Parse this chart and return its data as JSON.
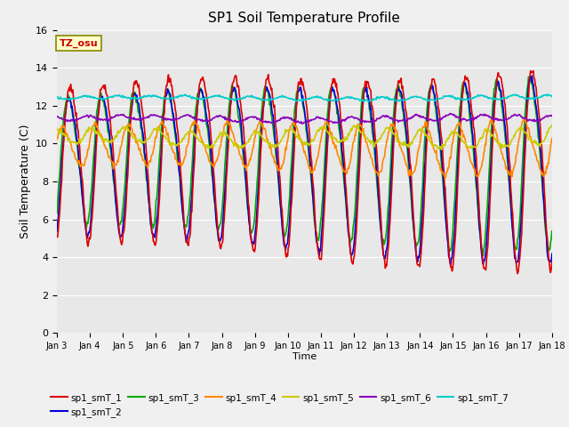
{
  "title": "SP1 Soil Temperature Profile",
  "xlabel": "Time",
  "ylabel": "Soil Temperature (C)",
  "annotation": "TZ_osu",
  "ylim": [
    0,
    16
  ],
  "yticks": [
    0,
    2,
    4,
    6,
    8,
    10,
    12,
    14,
    16
  ],
  "x_labels": [
    "Jan 3",
    "Jan 4",
    "Jan 5",
    "Jan 6",
    "Jan 7",
    "Jan 8",
    "Jan 9",
    "Jan 10",
    "Jan 11",
    "Jan 12",
    "Jan 13",
    "Jan 14",
    "Jan 15",
    "Jan 16",
    "Jan 17",
    "Jan 18"
  ],
  "series_colors": {
    "sp1_smT_1": "#dd0000",
    "sp1_smT_2": "#0000dd",
    "sp1_smT_3": "#00aa00",
    "sp1_smT_4": "#ff8800",
    "sp1_smT_5": "#cccc00",
    "sp1_smT_6": "#8800bb",
    "sp1_smT_7": "#00cccc"
  },
  "series_labels": [
    "sp1_smT_1",
    "sp1_smT_2",
    "sp1_smT_3",
    "sp1_smT_4",
    "sp1_smT_5",
    "sp1_smT_6",
    "sp1_smT_7"
  ],
  "background_color": "#e8e8e8",
  "grid_color": "#ffffff",
  "fig_bg": "#f0f0f0"
}
